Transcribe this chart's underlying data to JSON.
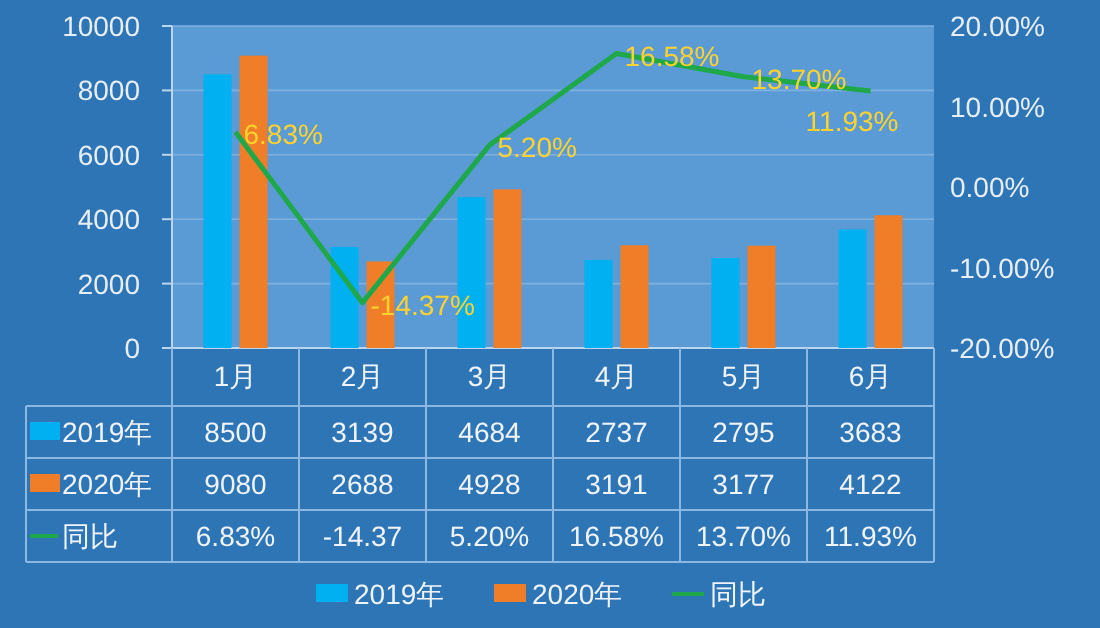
{
  "chart_data": {
    "type": "bar",
    "categories": [
      "1月",
      "2月",
      "3月",
      "4月",
      "5月",
      "6月"
    ],
    "series": [
      {
        "name": "2019年",
        "color": "#00b0f0",
        "values": [
          8500,
          3139,
          4684,
          2737,
          2795,
          3683
        ],
        "value_labels": [
          "8500",
          "3139",
          "4684",
          "2737",
          "2795",
          "3683"
        ]
      },
      {
        "name": "2020年",
        "color": "#f07d28",
        "values": [
          9080,
          2688,
          4928,
          3191,
          3177,
          4122
        ],
        "value_labels": [
          "9080",
          "2688",
          "4928",
          "3191",
          "3177",
          "4122"
        ]
      },
      {
        "name": "同比",
        "type": "line",
        "axis": "y2",
        "color": "#1fa84a",
        "values": [
          6.83,
          -14.37,
          5.2,
          16.58,
          13.7,
          11.93
        ],
        "value_labels": [
          "6.83%",
          "-14.37",
          "5.20%",
          "16.58%",
          "13.70%",
          "11.93%"
        ]
      }
    ],
    "ylim": [
      0,
      10000
    ],
    "yticks": [
      0,
      2000,
      4000,
      6000,
      8000,
      10000
    ],
    "y2lim": [
      -20,
      20
    ],
    "y2ticks": [
      {
        "value": -20,
        "label": "-20.00%"
      },
      {
        "value": -10,
        "label": "-10.00%"
      },
      {
        "value": 0,
        "label": "0.00%"
      },
      {
        "value": 10,
        "label": "10.00%"
      },
      {
        "value": 20,
        "label": "20.00%"
      }
    ],
    "annotations": [
      "6.83%",
      "-14.37%",
      "5.20%",
      "16.58%",
      "13.70%",
      "11.93%"
    ],
    "grid": "y",
    "legend": "bottom",
    "marker": "none",
    "line_style": "solid"
  }
}
